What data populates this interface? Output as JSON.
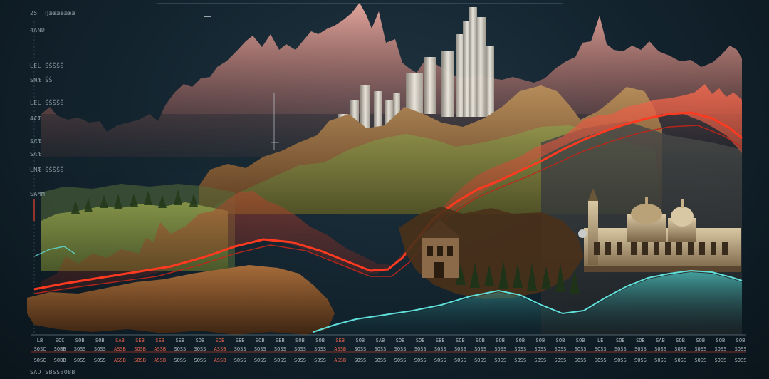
{
  "header": {
    "title": "25_ Ŋæææææææ",
    "right_text": ""
  },
  "y_axis_labels": [
    "4AND",
    "LEL ŠŠŠŠŠ",
    "SMÆ ŠŠ",
    "LEL ŠŠŠŠŠ",
    "4ÆÆ",
    "SÆÆ",
    "SÆÆ",
    "LMÆ ŠŠŠŠŠ",
    "SAMM"
  ],
  "x_ticks_row1": [
    "LB",
    "SOC",
    "SOB",
    "SOB",
    "SAB",
    "SEB",
    "SEB",
    "SEB",
    "SOB",
    "SOB",
    "SEB",
    "SOB",
    "SEB",
    "SOB",
    "SOB",
    "SEB",
    "SOB",
    "SAB",
    "SOB",
    "SOB",
    "SBB",
    "SOB",
    "SOB",
    "SOB",
    "SOB",
    "SOB",
    "SOB",
    "SOB",
    "LE",
    "SOB",
    "SOB",
    "SAB",
    "SOB",
    "SOB",
    "SOB",
    "SOB"
  ],
  "x_ticks_row2": [
    "SOSC",
    "SOBB",
    "SOSS",
    "SOSS",
    "ASSB",
    "SOSB",
    "ASSB",
    "SOSS",
    "SOSS",
    "ASSB",
    "SOSS",
    "SOSS",
    "SOSS",
    "SOSS",
    "SOSS",
    "ASSB",
    "SOSS",
    "SOSS",
    "SOSS",
    "SOSS",
    "SOSS",
    "SOSS",
    "SOSS",
    "SOSS",
    "SOSS",
    "SOSS",
    "SOSS",
    "SOSS",
    "SOSS",
    "SOSS",
    "SOSS",
    "SOSS",
    "SOSS",
    "SOSS",
    "SOSS",
    "SOSS"
  ],
  "x_ticks_row3": [
    "SOSC",
    "SOBB",
    "SOSS",
    "SOSS",
    "ASSB",
    "SOSB",
    "ASSB",
    "SOSS",
    "SOSS",
    "ASSB",
    "SOSS",
    "SOSS",
    "SOSS",
    "SOSS",
    "SOSS",
    "ASSB",
    "SOSS",
    "SOSS",
    "SOSS",
    "SOSS",
    "SOSS",
    "SOSS",
    "SOSS",
    "SOSS",
    "SOSS",
    "SOSS",
    "SOSS",
    "SOSS",
    "SOSS",
    "SOSS",
    "SOSS",
    "SOSS",
    "SOSS",
    "SOSS",
    "SOSS",
    "SOSS"
  ],
  "footer_text": "SAD SBSSBOBB",
  "colors": {
    "background": "#142530",
    "primary_red": "#e8452e",
    "pale_red": "#f39a8a",
    "teal": "#3fc0c0",
    "rock": "#9a6a3a",
    "forest": "#2f4a22"
  }
}
